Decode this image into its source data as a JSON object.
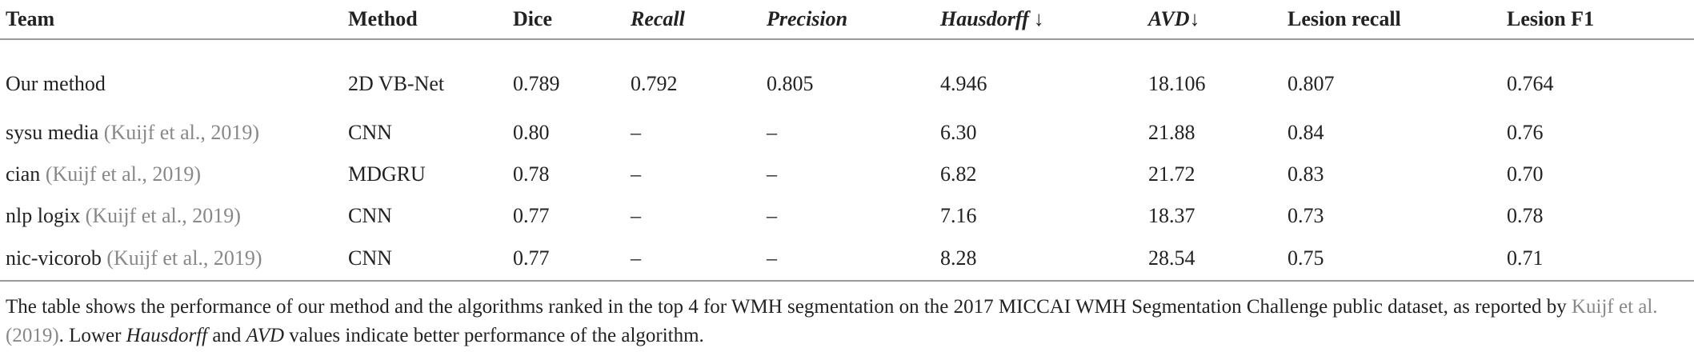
{
  "table": {
    "header": [
      {
        "text": "Team"
      },
      {
        "text": "Method"
      },
      {
        "text": "Dice"
      },
      {
        "text": "Recall"
      },
      {
        "text": "Precision"
      },
      {
        "text": "Hausdorff",
        "suffix": "↓"
      },
      {
        "text": "AVD",
        "suffix": "↓"
      },
      {
        "text": "Lesion recall"
      },
      {
        "text": "Lesion F1"
      }
    ],
    "rows": [
      {
        "team": "Our method",
        "cells": [
          "2D VB-Net",
          "0.789",
          "0.792",
          "0.805",
          "4.946",
          "18.106",
          "0.807",
          "0.764"
        ]
      },
      {
        "team": "sysu media",
        "citation": "(Kuijf et al., 2019)",
        "cells": [
          "CNN",
          "0.80",
          "–",
          "–",
          "6.30",
          "21.88",
          "0.84",
          "0.76"
        ]
      },
      {
        "team": "cian",
        "citation": "(Kuijf et al., 2019)",
        "cells": [
          "MDGRU",
          "0.78",
          "–",
          "–",
          "6.82",
          "21.72",
          "0.83",
          "0.70"
        ]
      },
      {
        "team": "nlp logix",
        "citation": "(Kuijf et al., 2019)",
        "cells": [
          "CNN",
          "0.77",
          "–",
          "–",
          "7.16",
          "18.37",
          "0.73",
          "0.78"
        ]
      },
      {
        "team": "nic-vicorob",
        "citation": "(Kuijf et al., 2019)",
        "cells": [
          "CNN",
          "0.77",
          "–",
          "–",
          "8.28",
          "28.54",
          "0.75",
          "0.71"
        ]
      }
    ]
  },
  "footnote": {
    "parts": [
      {
        "text": "The table shows the performance of our method and the algorithms ranked in the top 4 for WMH segmentation on the 2017 MICCAI WMH Segmentation Challenge public dataset, as reported by "
      },
      {
        "text": "Kuijf et al. (2019)",
        "style": "cite"
      },
      {
        "text": ". Lower "
      },
      {
        "text": "Hausdorff",
        "style": "italic"
      },
      {
        "text": " and "
      },
      {
        "text": "AVD",
        "style": "italic"
      },
      {
        "text": " values indicate better performance of the algorithm."
      }
    ]
  }
}
